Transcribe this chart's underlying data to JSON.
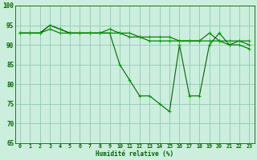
{
  "xlabel": "Humidité relative (%)",
  "background_color": "#cceedd",
  "grid_color": "#99ccbb",
  "line_color": "#006600",
  "marker_color": "#00aa00",
  "ylim": [
    65,
    100
  ],
  "xlim": [
    -0.5,
    23.5
  ],
  "yticks": [
    65,
    70,
    75,
    80,
    85,
    90,
    95,
    100
  ],
  "xticks": [
    0,
    1,
    2,
    3,
    4,
    5,
    6,
    7,
    8,
    9,
    10,
    11,
    12,
    13,
    14,
    15,
    16,
    17,
    18,
    19,
    20,
    21,
    22,
    23
  ],
  "series": [
    [
      93,
      93,
      93,
      94,
      93,
      93,
      93,
      93,
      93,
      93,
      85,
      81,
      77,
      77,
      75,
      73,
      90,
      77,
      77,
      90,
      93,
      90,
      90,
      89
    ],
    [
      93,
      93,
      93,
      95,
      94,
      93,
      93,
      93,
      93,
      93,
      93,
      92,
      92,
      91,
      91,
      91,
      91,
      91,
      91,
      91,
      91,
      91,
      91,
      91
    ],
    [
      93,
      93,
      93,
      95,
      94,
      93,
      93,
      93,
      93,
      94,
      93,
      93,
      92,
      92,
      92,
      92,
      91,
      91,
      91,
      93,
      91,
      90,
      91,
      90
    ]
  ]
}
